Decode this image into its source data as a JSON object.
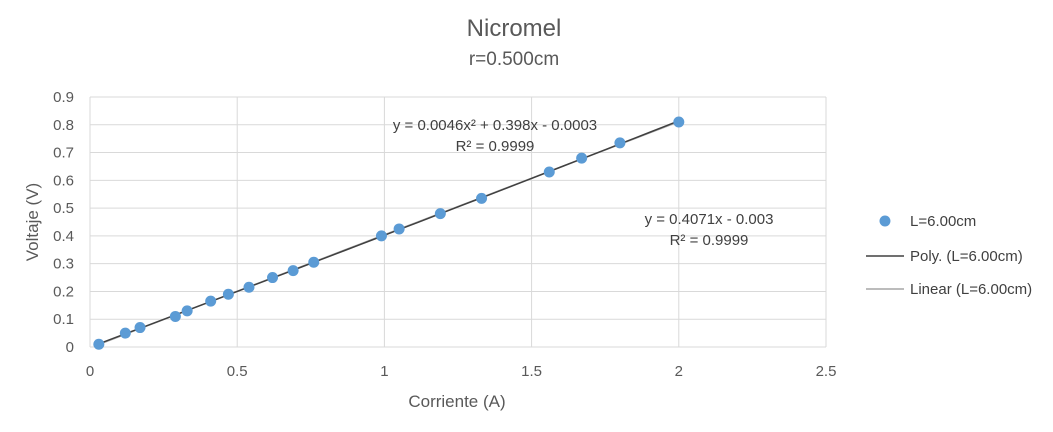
{
  "chart_data": {
    "type": "scatter",
    "title": "Nicromel",
    "subtitle": "r=0.500cm",
    "xlabel": "Corriente (A)",
    "ylabel": "Voltaje (V)",
    "xlim": [
      0,
      2.5
    ],
    "ylim": [
      0,
      0.9
    ],
    "x_ticks": [
      "0",
      "0.5",
      "1",
      "1.5",
      "2",
      "2.5"
    ],
    "y_ticks": [
      "0",
      "0.1",
      "0.2",
      "0.3",
      "0.4",
      "0.5",
      "0.6",
      "0.7",
      "0.8",
      "0.9"
    ],
    "grid": true,
    "legend_position": "right",
    "series": [
      {
        "name": "L=6.00cm",
        "color": "#5b9bd5",
        "points": [
          [
            0.03,
            0.01
          ],
          [
            0.12,
            0.05
          ],
          [
            0.17,
            0.07
          ],
          [
            0.29,
            0.11
          ],
          [
            0.33,
            0.13
          ],
          [
            0.41,
            0.165
          ],
          [
            0.47,
            0.19
          ],
          [
            0.54,
            0.215
          ],
          [
            0.62,
            0.25
          ],
          [
            0.69,
            0.275
          ],
          [
            0.76,
            0.305
          ],
          [
            0.99,
            0.4
          ],
          [
            1.05,
            0.425
          ],
          [
            1.19,
            0.48
          ],
          [
            1.33,
            0.535
          ],
          [
            1.56,
            0.63
          ],
          [
            1.67,
            0.68
          ],
          [
            1.8,
            0.735
          ],
          [
            2.0,
            0.81
          ]
        ]
      }
    ],
    "trendlines": [
      {
        "name": "Poly. (L=6.00cm)",
        "type": "polynomial",
        "color": "#404040",
        "coefficients": [
          0.0046,
          0.398,
          -0.0003
        ],
        "equation": "y = 0.0046x² + 0.398x - 0.0003",
        "r2": "R² = 0.9999"
      },
      {
        "name": "Linear (L=6.00cm)",
        "type": "linear",
        "color": "#a6a6a6",
        "coefficients": [
          0.4071,
          -0.003
        ],
        "equation": "y = 0.4071x - 0.003",
        "r2": "R² = 0.9999"
      }
    ]
  }
}
